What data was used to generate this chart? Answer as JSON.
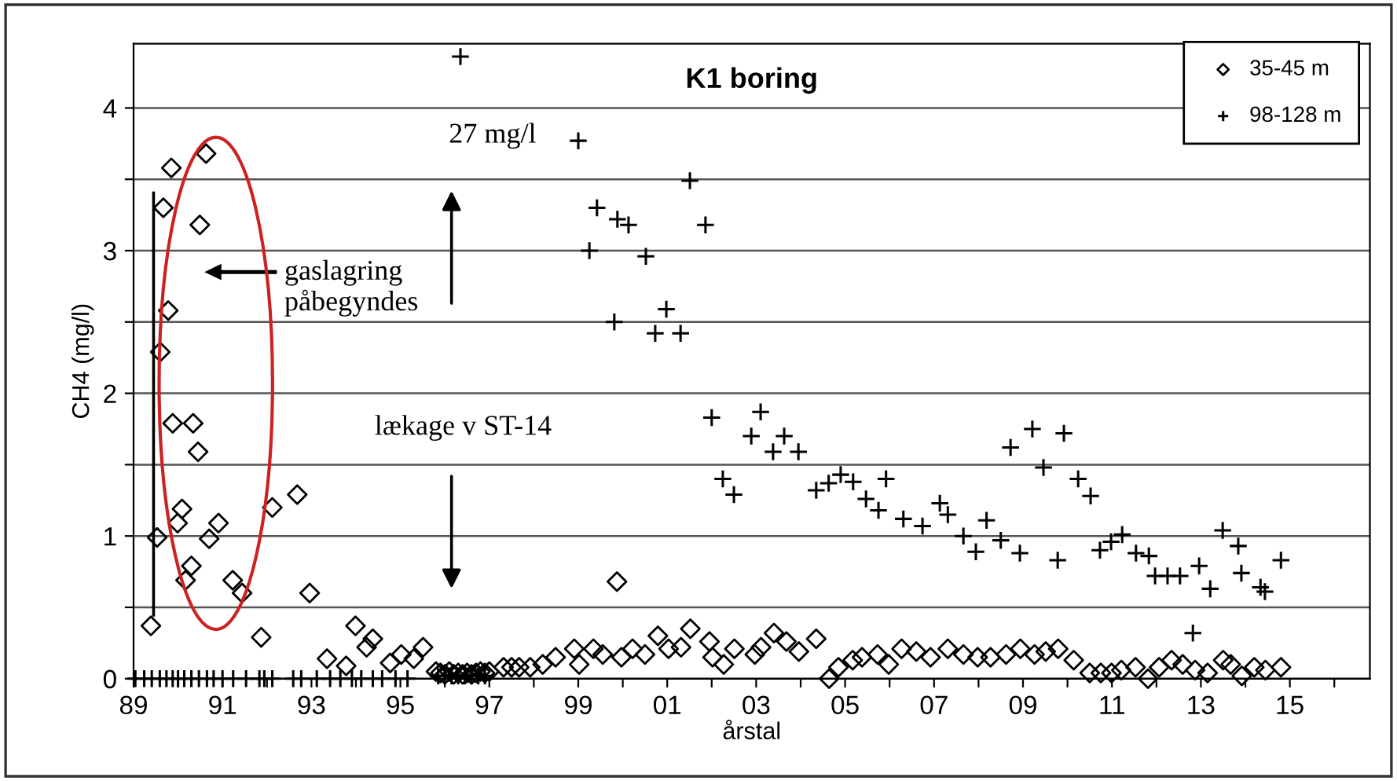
{
  "chart_data": {
    "type": "scatter",
    "title": "K1 boring",
    "xlabel": "årstal",
    "ylabel": "CH4 (mg/l)",
    "xlim": [
      1989,
      2016.8
    ],
    "ylim": [
      0,
      4.45
    ],
    "xticks": [
      {
        "value": 1989,
        "label": "89"
      },
      {
        "value": 1990,
        "label": null
      },
      {
        "value": 1991,
        "label": "91"
      },
      {
        "value": 1992,
        "label": null
      },
      {
        "value": 1993,
        "label": "93"
      },
      {
        "value": 1994,
        "label": null
      },
      {
        "value": 1995,
        "label": "95"
      },
      {
        "value": 1996,
        "label": null
      },
      {
        "value": 1997,
        "label": "97"
      },
      {
        "value": 1998,
        "label": null
      },
      {
        "value": 1999,
        "label": "99"
      },
      {
        "value": 2000,
        "label": null
      },
      {
        "value": 2001,
        "label": "01"
      },
      {
        "value": 2002,
        "label": null
      },
      {
        "value": 2003,
        "label": "03"
      },
      {
        "value": 2004,
        "label": null
      },
      {
        "value": 2005,
        "label": "05"
      },
      {
        "value": 2006,
        "label": null
      },
      {
        "value": 2007,
        "label": "07"
      },
      {
        "value": 2008,
        "label": null
      },
      {
        "value": 2009,
        "label": "09"
      },
      {
        "value": 2010,
        "label": null
      },
      {
        "value": 2011,
        "label": "11"
      },
      {
        "value": 2012,
        "label": null
      },
      {
        "value": 2013,
        "label": "13"
      },
      {
        "value": 2014,
        "label": null
      },
      {
        "value": 2015,
        "label": "15"
      },
      {
        "value": 2016,
        "label": null
      }
    ],
    "yticks": [
      0,
      {
        "value": 0.5,
        "label": null
      },
      1,
      {
        "value": 1.5,
        "label": null
      },
      2,
      {
        "value": 2.5,
        "label": null
      },
      3,
      {
        "value": 3.5,
        "label": null
      },
      4
    ],
    "grid": "y",
    "legend": "top right",
    "ref_lines": [
      {
        "axis": "x",
        "value": 1989.45,
        "color": "#000000"
      }
    ],
    "annotations": [
      "27 mg/l",
      "gaslagring\npåbegyndes",
      "lækage v ST-14"
    ],
    "series": [
      {
        "name": "35-45 m",
        "color": "#000000",
        "marker": "diamond",
        "x": [
          1989.39,
          1989.53,
          1989.67,
          1989.85,
          1989.78,
          1989.6,
          1989.88,
          1990.34,
          1990.45,
          1990.09,
          1989.99,
          1990.3,
          1990.17,
          1990.63,
          1990.49,
          1990.7,
          1990.91,
          1991.23,
          1991.44,
          1991.87,
          1992.12,
          1992.68,
          1992.96,
          1993.35,
          1993.78,
          1993.99,
          1994.24,
          1994.38,
          1994.77,
          1995.02,
          1995.3,
          1995.51,
          1995.8,
          1995.9,
          1996.0,
          1996.1,
          1996.2,
          1996.3,
          1996.4,
          1996.5,
          1996.6,
          1996.7,
          1996.8,
          1996.9,
          1997.0,
          1997.32,
          1997.5,
          1997.67,
          1997.92,
          1998.2,
          1998.49,
          1998.91,
          1999.02,
          1999.34,
          1999.55,
          1999.87,
          1999.97,
          2000.22,
          2000.5,
          2000.79,
          2001.03,
          2001.31,
          2001.52,
          2001.95,
          2002.02,
          2002.27,
          2002.51,
          2002.97,
          2003.11,
          2003.4,
          2003.68,
          2003.96,
          2004.35,
          2004.64,
          2004.85,
          2005.17,
          2005.38,
          2005.73,
          2005.98,
          2006.27,
          2006.6,
          2006.92,
          2007.31,
          2007.66,
          2007.98,
          2008.27,
          2008.62,
          2008.94,
          2009.26,
          2009.51,
          2009.79,
          2010.14,
          2010.5,
          2010.75,
          2010.99,
          2011.21,
          2011.53,
          2011.81,
          2012.06,
          2012.34,
          2012.59,
          2012.87,
          2013.15,
          2013.5,
          2013.67,
          2013.92,
          2014.2,
          2014.45,
          2014.8
        ],
        "values": [
          0.37,
          0.99,
          3.3,
          3.58,
          2.58,
          2.29,
          1.79,
          1.79,
          1.59,
          1.19,
          1.09,
          0.79,
          0.69,
          3.68,
          3.18,
          0.98,
          1.09,
          0.69,
          0.6,
          0.29,
          1.2,
          1.29,
          0.6,
          0.14,
          0.09,
          0.37,
          0.22,
          0.28,
          0.11,
          0.17,
          0.14,
          0.22,
          0.05,
          0.04,
          0.03,
          0.05,
          0.03,
          0.04,
          0.03,
          0.04,
          0.03,
          0.04,
          0.05,
          0.04,
          0.05,
          0.08,
          0.08,
          0.08,
          0.08,
          0.1,
          0.15,
          0.21,
          0.1,
          0.21,
          0.17,
          0.68,
          0.15,
          0.21,
          0.17,
          0.3,
          0.21,
          0.22,
          0.35,
          0.26,
          0.15,
          0.1,
          0.21,
          0.17,
          0.22,
          0.32,
          0.26,
          0.19,
          0.28,
          0.0,
          0.08,
          0.13,
          0.15,
          0.17,
          0.1,
          0.21,
          0.19,
          0.15,
          0.21,
          0.17,
          0.15,
          0.15,
          0.17,
          0.21,
          0.17,
          0.19,
          0.21,
          0.13,
          0.04,
          0.04,
          0.04,
          0.06,
          0.08,
          0.0,
          0.08,
          0.13,
          0.1,
          0.06,
          0.04,
          0.13,
          0.1,
          0.02,
          0.08,
          0.06,
          0.08
        ]
      },
      {
        "name": "98-128 m",
        "color": "#000000",
        "marker": "cross",
        "x": [
          1989.04,
          1989.24,
          1989.41,
          1989.59,
          1989.74,
          1989.88,
          1990.0,
          1990.14,
          1990.3,
          1990.47,
          1990.65,
          1990.8,
          1991.0,
          1991.24,
          1991.53,
          1991.83,
          1991.94,
          1992.12,
          1992.59,
          1992.77,
          1993.12,
          1993.42,
          1993.65,
          1993.91,
          1994.12,
          1994.38,
          1994.59,
          1994.89,
          1995.16,
          1995.85,
          1996.0,
          1996.15,
          1996.3,
          1996.45,
          1996.6,
          1996.75,
          1996.9,
          1996.35,
          1999.0,
          1999.42,
          1999.88,
          2000.13,
          1999.25,
          2000.52,
          1999.81,
          2000.98,
          2000.73,
          2001.3,
          2001.51,
          2001.86,
          2002.0,
          2003.1,
          2002.25,
          2002.5,
          2002.89,
          2003.38,
          2003.63,
          2003.95,
          2004.35,
          2004.63,
          2004.9,
          2005.18,
          2005.92,
          2005.47,
          2005.75,
          2006.31,
          2006.74,
          2007.13,
          2007.31,
          2007.66,
          2007.94,
          2008.18,
          2008.5,
          2008.93,
          2008.72,
          2009.21,
          2009.46,
          2009.92,
          2009.78,
          2010.24,
          2010.52,
          2010.73,
          2010.98,
          2011.23,
          2011.54,
          2011.83,
          2011.97,
          2012.25,
          2012.53,
          2012.96,
          2012.82,
          2013.21,
          2013.49,
          2013.84,
          2013.91,
          2014.34,
          2014.44,
          2014.8
        ],
        "values": [
          0,
          0,
          0,
          0,
          0,
          0,
          0,
          0,
          0,
          0,
          0,
          0,
          0,
          0,
          0,
          0,
          0,
          0,
          0,
          0,
          0,
          0,
          0,
          0,
          0,
          0,
          0,
          0,
          0,
          0.02,
          0.02,
          0.02,
          0.02,
          0.02,
          0.02,
          0.02,
          0.02,
          4.36,
          3.77,
          3.3,
          3.22,
          3.18,
          3.0,
          2.96,
          2.5,
          2.59,
          2.42,
          2.42,
          3.49,
          3.18,
          1.83,
          1.87,
          1.4,
          1.29,
          1.7,
          1.59,
          1.7,
          1.59,
          1.32,
          1.37,
          1.43,
          1.38,
          1.4,
          1.26,
          1.18,
          1.12,
          1.07,
          1.23,
          1.15,
          1.0,
          0.89,
          1.11,
          0.97,
          0.88,
          1.62,
          1.75,
          1.48,
          1.72,
          0.83,
          1.4,
          1.28,
          0.9,
          0.96,
          1.01,
          0.88,
          0.86,
          0.72,
          0.72,
          0.72,
          0.79,
          0.32,
          0.63,
          1.04,
          0.93,
          0.74,
          0.64,
          0.61,
          0.83
        ]
      }
    ]
  }
}
